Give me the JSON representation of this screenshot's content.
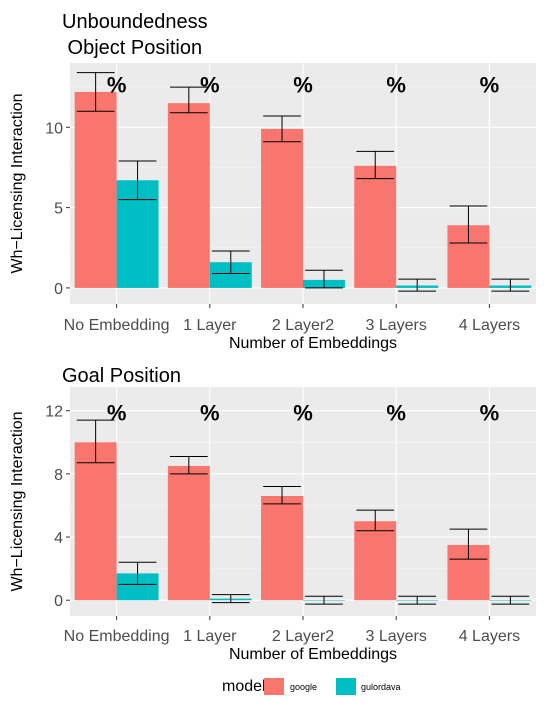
{
  "colors": {
    "google": "#F8766D",
    "gulordava": "#00BFC4",
    "panel": "#EBEBEB",
    "grid_major": "#FFFFFF",
    "grid_minor": "#F5F5F5",
    "text": "#000000",
    "tick_label": "#4D4D4D"
  },
  "legend": {
    "title": "model",
    "entries": [
      {
        "key": "google",
        "label": "google"
      },
      {
        "key": "gulordava",
        "label": "gulordava"
      }
    ]
  },
  "chart_data": [
    {
      "type": "bar",
      "title": "Unboundedness\n Object Position",
      "xlabel": "Number of Embeddings",
      "ylabel": "Wh−Licensing Interaction",
      "categories": [
        "No Embedding",
        "1 Layer",
        "2 Layer2",
        "3 Layers",
        "4 Layers"
      ],
      "ylim": [
        -1.0,
        14.0
      ],
      "yticks": [
        0,
        5,
        10
      ],
      "ytick_labels": [
        "0",
        "5",
        "10"
      ],
      "annotations": [
        "%",
        "%",
        "%",
        "%",
        "%"
      ],
      "annotation_y": 12.8,
      "series": [
        {
          "name": "google",
          "values": [
            12.2,
            11.5,
            9.9,
            7.6,
            3.9
          ],
          "err_low": [
            11.0,
            10.9,
            9.1,
            6.8,
            2.8
          ],
          "err_high": [
            13.4,
            12.5,
            10.7,
            8.5,
            5.1
          ]
        },
        {
          "name": "gulordava",
          "values": [
            6.7,
            1.6,
            0.5,
            0.15,
            0.15
          ],
          "err_low": [
            5.5,
            0.9,
            0.0,
            -0.2,
            -0.2
          ],
          "err_high": [
            7.9,
            2.3,
            1.1,
            0.55,
            0.55
          ]
        }
      ]
    },
    {
      "type": "bar",
      "title": "Goal Position",
      "xlabel": "Number of Embeddings",
      "ylabel": "Wh−Licensing Interaction",
      "categories": [
        "No Embedding",
        "1 Layer",
        "2 Layer2",
        "3 Layers",
        "4 Layers"
      ],
      "ylim": [
        -1.0,
        13.5
      ],
      "yticks": [
        0,
        4,
        8,
        12
      ],
      "ytick_labels": [
        "0",
        "4",
        "8",
        "12"
      ],
      "annotations": [
        "%",
        "%",
        "%",
        "%",
        "%"
      ],
      "annotation_y": 12.0,
      "series": [
        {
          "name": "google",
          "values": [
            10.0,
            8.5,
            6.6,
            5.0,
            3.5
          ],
          "err_low": [
            8.7,
            8.0,
            6.1,
            4.4,
            2.6
          ],
          "err_high": [
            11.4,
            9.1,
            7.2,
            5.7,
            4.5
          ]
        },
        {
          "name": "gulordava",
          "values": [
            1.7,
            0.1,
            0.0,
            0.0,
            0.0
          ],
          "err_low": [
            1.0,
            -0.15,
            -0.25,
            -0.25,
            -0.25
          ],
          "err_high": [
            2.4,
            0.35,
            0.25,
            0.25,
            0.25
          ]
        }
      ]
    }
  ]
}
